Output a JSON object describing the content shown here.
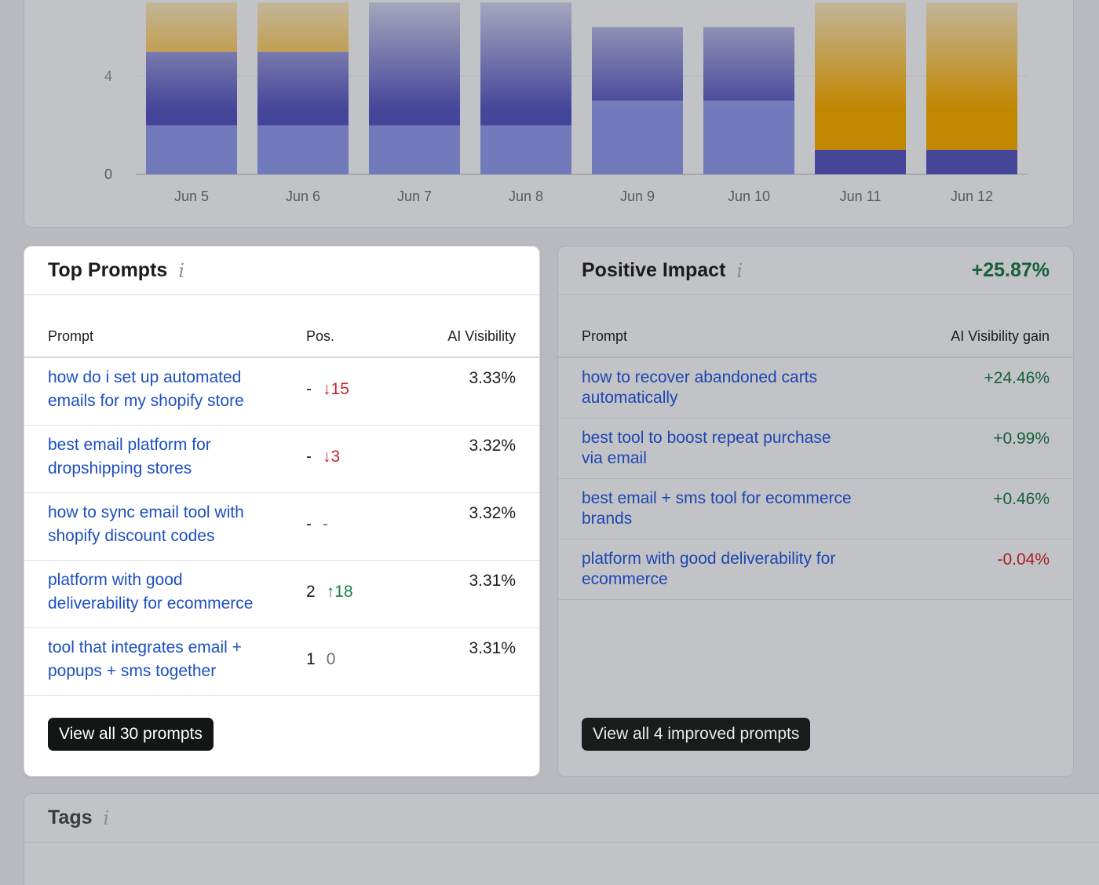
{
  "chart_data": {
    "type": "bar",
    "stacked": true,
    "categories": [
      "Jun 5",
      "Jun 6",
      "Jun 7",
      "Jun 8",
      "Jun 9",
      "Jun 10",
      "Jun 11",
      "Jun 12"
    ],
    "y_ticks": [
      "0",
      "4"
    ],
    "ylim": [
      0,
      7
    ],
    "series": [
      {
        "color": "#717bbb",
        "values": [
          2,
          2,
          2,
          2,
          3,
          3,
          0,
          0
        ]
      },
      {
        "color": "#45469a",
        "values": [
          3,
          3,
          5,
          5,
          3,
          3,
          1,
          1
        ]
      },
      {
        "color": "#c28700",
        "values": [
          2,
          2,
          0,
          0,
          0,
          0,
          6,
          6
        ]
      }
    ],
    "grid": true
  },
  "top_prompts": {
    "title": "Top Prompts",
    "info": "i",
    "columns": {
      "prompt": "Prompt",
      "pos": "Pos.",
      "visibility": "AI Visibility"
    },
    "rows": [
      {
        "prompt": [
          "how do i set up automated",
          "emails for my shopify store"
        ],
        "pos": "-",
        "delta": "↓15",
        "trend": "down",
        "visibility": "3.33%"
      },
      {
        "prompt": [
          "best email platform for",
          "dropshipping stores"
        ],
        "pos": "-",
        "delta": "↓3",
        "trend": "down",
        "visibility": "3.32%"
      },
      {
        "prompt": [
          "how to sync email tool with",
          "shopify discount codes"
        ],
        "pos": "-",
        "delta": "-",
        "trend": "none",
        "visibility": "3.32%"
      },
      {
        "prompt": [
          "platform with good",
          "deliverability for ecommerce"
        ],
        "pos": "2",
        "delta": "↑18",
        "trend": "up",
        "visibility": "3.31%"
      },
      {
        "prompt": [
          "tool that integrates email +",
          "popups + sms together"
        ],
        "pos": "1",
        "delta": "0",
        "trend": "none",
        "visibility": "3.31%"
      }
    ],
    "button": "View all 30 prompts"
  },
  "positive_impact": {
    "title": "Positive Impact",
    "info": "i",
    "total": "+25.87%",
    "columns": {
      "prompt": "Prompt",
      "gain": "AI Visibility gain"
    },
    "rows": [
      {
        "prompt": [
          "how to recover abandoned carts",
          "automatically"
        ],
        "gain": "+24.46%",
        "sign": "positive"
      },
      {
        "prompt": [
          "best tool to boost repeat purchase",
          "via email"
        ],
        "gain": "+0.99%",
        "sign": "positive"
      },
      {
        "prompt": [
          "best email + sms tool for ecommerce",
          "brands"
        ],
        "gain": "+0.46%",
        "sign": "positive"
      },
      {
        "prompt": [
          "platform with good deliverability for",
          "ecommerce"
        ],
        "gain": "-0.04%",
        "sign": "negative"
      }
    ],
    "button": "View all 4 improved prompts"
  },
  "tags": {
    "title": "Tags",
    "info": "i"
  }
}
